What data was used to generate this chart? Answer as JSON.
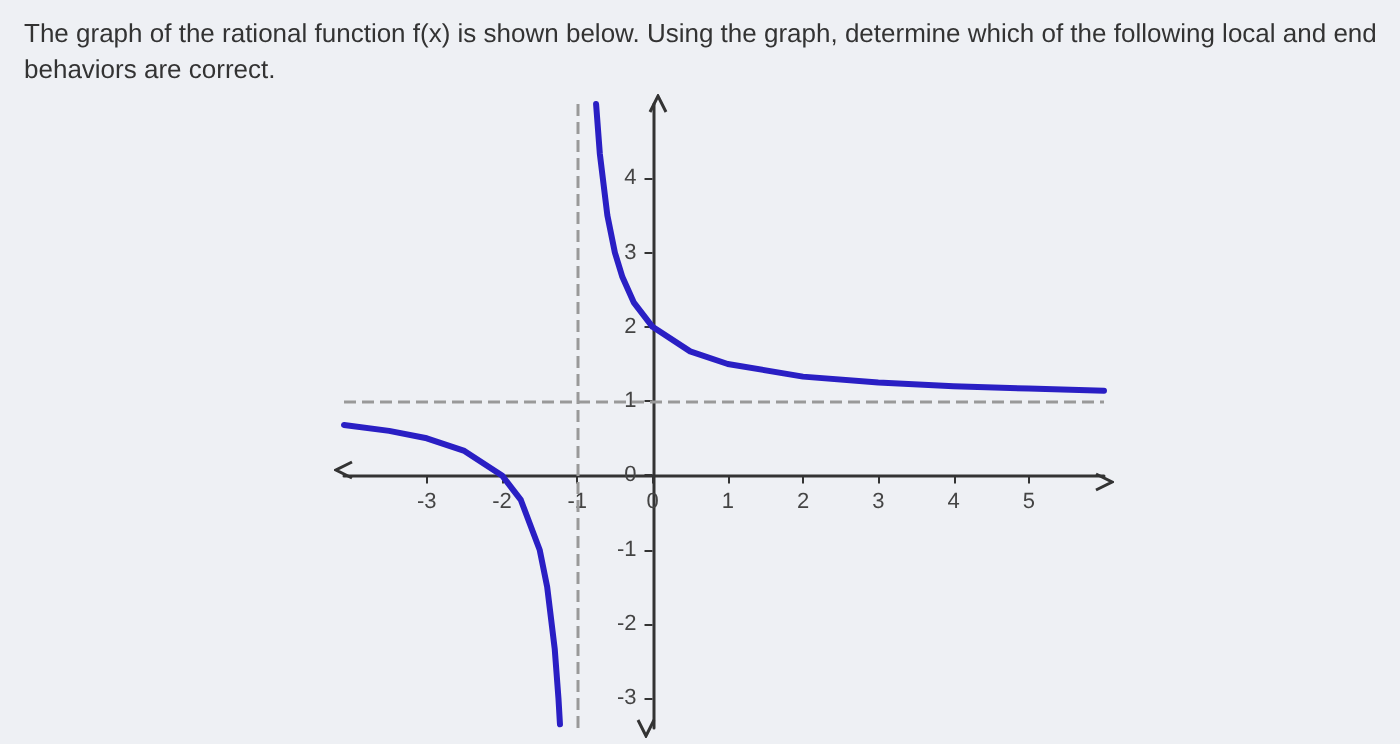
{
  "chart_data": {
    "type": "line",
    "title": "The graph of the rational function f(x) is shown below. Using the graph, determine which of the following local and end behaviors are correct.",
    "series": [
      {
        "color": "#2a1fc4",
        "x": [
          -4.1,
          -3.5,
          -3,
          -2.5,
          -2,
          -1.75,
          -1.5,
          -1.4,
          -1.3,
          -1.25,
          -1.23
        ],
        "values": [
          0.68,
          0.6,
          0.5,
          0.33,
          0,
          -0.33,
          -1,
          -1.5,
          -2.33,
          -3,
          -3.35
        ]
      },
      {
        "color": "#2a1fc4",
        "x": [
          -0.75,
          -0.7,
          -0.6,
          -0.5,
          -0.4,
          -0.25,
          0,
          0.5,
          1,
          2,
          3,
          4,
          5,
          6
        ],
        "values": [
          5,
          4.33,
          3.5,
          3,
          2.67,
          2.33,
          2,
          1.67,
          1.5,
          1.33,
          1.25,
          1.2,
          1.17,
          1.14
        ]
      }
    ],
    "xlim": [
      -4.1,
      6
    ],
    "ylim": [
      -3.4,
      5
    ],
    "xticks": [
      -3,
      -2,
      -1,
      0,
      1,
      2,
      3,
      4,
      5
    ],
    "yticks": [
      -3,
      -2,
      -1,
      0,
      1,
      2,
      3,
      4
    ],
    "ref_lines": [
      {
        "axis": "x",
        "value": -1,
        "color": "#999999",
        "line_style": "dashed"
      },
      {
        "axis": "y",
        "value": 1,
        "color": "#999999",
        "line_style": "dashed"
      }
    ],
    "grid": false,
    "marker": "none",
    "line_style": "solid"
  }
}
